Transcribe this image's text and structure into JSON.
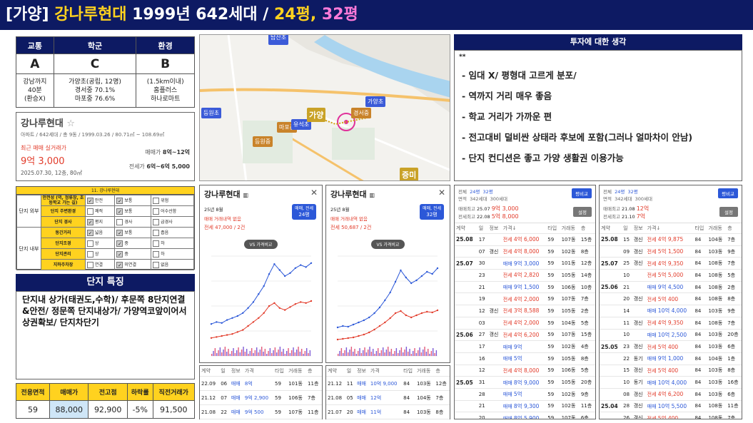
{
  "header": {
    "prefix": "[가양] ",
    "name": "강나루현대",
    "info": " 1999년 642세대 / ",
    "sizes1": "24평",
    "comma": ", ",
    "sizes2": "32평"
  },
  "scores": {
    "cols": [
      "교통",
      "학군",
      "환경"
    ],
    "grades": [
      "A",
      "C",
      "B"
    ],
    "notes": [
      [
        "강남까지",
        "40분",
        "(환승X)"
      ],
      [
        "가양초(공립, 12명)",
        "경서중 70.1%",
        "마포중 76.6%"
      ],
      [
        "(1.5km이내)",
        "홈플러스",
        "하나로마트"
      ]
    ]
  },
  "card": {
    "title": "강나루현대",
    "sub": "아파트 / 642세대 / 총 9동 / 1999.03.26 / 80.71㎡ ~ 108.69㎡",
    "recent_label": "최근 매매 실거래가",
    "recent_price": "9억 3,000",
    "recent_date": "2025.07.30, 12층, 80㎡",
    "sale_label": "매매가",
    "sale_range": "8억~12억",
    "jeonse_label": "전세가",
    "jeonse_range": "6억~6억 5,000"
  },
  "checklist": {
    "title": "11. 강나루현대",
    "out_label": "단지 외부",
    "in_label": "단지 내부",
    "rows": [
      {
        "name": "안전성 (역, 정류장, 초등학교 가는 길)",
        "opts": [
          "안전",
          "보통",
          "위험"
        ],
        "sel": [
          1,
          1,
          0
        ]
      },
      {
        "name": "단지 주변환경",
        "opts": [
          "쾌적",
          "보통",
          "어수선함"
        ],
        "sel": [
          0,
          1,
          0
        ]
      },
      {
        "name": "단지 경사",
        "opts": [
          "평지",
          "경사",
          "급경사"
        ],
        "sel": [
          1,
          0,
          0
        ]
      },
      {
        "name": "동간거리",
        "opts": [
          "넓음",
          "보통",
          "좁음"
        ],
        "sel": [
          1,
          1,
          0
        ]
      },
      {
        "name": "단지조경",
        "opts": [
          "상",
          "중",
          "하"
        ],
        "sel": [
          0,
          1,
          0
        ]
      },
      {
        "name": "단지관리",
        "opts": [
          "상",
          "중",
          "하"
        ],
        "sel": [
          0,
          1,
          0
        ]
      },
      {
        "name": "지하주차장",
        "opts": [
          "연결",
          "미연결",
          "없음"
        ],
        "sel": [
          0,
          1,
          0
        ]
      }
    ]
  },
  "feature": {
    "title": "단지 특징",
    "text": "단지내 상가(태권도,수학)/ 후문쪽 8단지연결&안전/ 정문쪽 단지내상가/ 가양역코앞이어서 상권확보/ 단지차단기"
  },
  "price_table": {
    "headers": [
      "전용면적",
      "매매가",
      "전고점",
      "하락률",
      "직전거래가"
    ],
    "values": [
      "59",
      "88,000",
      "92,900",
      "-5%",
      "91,500"
    ]
  },
  "map": {
    "pins": [
      {
        "label": "탑산초",
        "color": "#3b5bd8"
      },
      {
        "label": "등원초",
        "color": "#3b5bd8"
      },
      {
        "label": "마포중",
        "color": "#c9832a"
      },
      {
        "label": "유석초",
        "color": "#3b5bd8"
      },
      {
        "label": "가양",
        "color": "#c9a227"
      },
      {
        "label": "경서중",
        "color": "#c9832a"
      },
      {
        "label": "가양초",
        "color": "#3b5bd8"
      },
      {
        "label": "등원중",
        "color": "#c9832a"
      },
      {
        "label": "증미",
        "color": "#c9a227"
      }
    ]
  },
  "thoughts": {
    "title": "투자에 대한 생각",
    "stars": "**",
    "items": [
      "- 임대 X/ 평형대 고르게 분포/",
      "- 역까지 거리 매우 좋음",
      "- 학교 거리가 가까운 편",
      "- 전고대비 덜비싼 상태라 후보에 포함(그러나 얼마차이 안남)",
      "- 단지 컨디션은 좋고 가양 생활권 이용가능"
    ]
  },
  "chart_panels": [
    {
      "title": "강나루현대",
      "month": "25년 8월",
      "no_deal": "매매 거래내역 없음",
      "jeonse": "전세 47,000 / 2건",
      "badge1": "매매, 전세",
      "badge2": "24평",
      "compare": "VS 가격비교",
      "rows": [
        {
          "date": "22.09",
          "floor": "06",
          "type": "매매",
          "price": "8억",
          "area": "59",
          "dong": "101동",
          "fl": "11층"
        },
        {
          "date": "21.12",
          "floor": "07",
          "type": "매매",
          "price": "9억 2,900",
          "area": "59",
          "dong": "106동",
          "fl": "7층"
        },
        {
          "date": "21.08",
          "floor": "22",
          "type": "매매",
          "price": "9억 500",
          "area": "59",
          "dong": "107동",
          "fl": "11층"
        }
      ]
    },
    {
      "title": "강나루현대",
      "month": "25년 8월",
      "no_deal": "매매 거래내역 없음",
      "jeonse": "전세 50,687 / 2건",
      "badge1": "매매, 전세",
      "badge2": "32평",
      "compare": "VS 가격비교",
      "rows": [
        {
          "date": "21.12",
          "floor": "11",
          "type": "매매",
          "price": "10억 9,000",
          "area": "84",
          "dong": "103동",
          "fl": "12층"
        },
        {
          "date": "21.08",
          "floor": "05",
          "type": "매매",
          "price": "12억",
          "area": "84",
          "dong": "104동",
          "fl": "7층"
        },
        {
          "date": "21.07",
          "floor": "20",
          "type": "매매",
          "price": "11억",
          "area": "84",
          "dong": "103동",
          "fl": "8층"
        }
      ]
    }
  ],
  "chart_data": [
    {
      "type": "line",
      "series": [
        {
          "name": "매매",
          "values": [
            3.2,
            3.4,
            3.3,
            3.6,
            3.8,
            4.0,
            4.3,
            4.8,
            5.4,
            6.2,
            7.0,
            8.2,
            9.2,
            8.6,
            8.0,
            8.3,
            8.8,
            9.1,
            8.9,
            9.3
          ]
        },
        {
          "name": "전세",
          "values": [
            1.8,
            1.9,
            2.0,
            2.1,
            2.2,
            2.4,
            2.6,
            3.0,
            3.4,
            3.8,
            4.3,
            5.0,
            5.3,
            4.8,
            4.6,
            4.9,
            5.2,
            5.4,
            5.3,
            5.5
          ]
        }
      ],
      "ylim": [
        0,
        10
      ]
    },
    {
      "type": "line",
      "series": [
        {
          "name": "매매",
          "values": [
            4.0,
            4.2,
            4.1,
            4.4,
            4.7,
            5.0,
            5.4,
            6.0,
            6.8,
            7.8,
            8.9,
            10.4,
            12.0,
            11.0,
            10.2,
            10.6,
            11.2,
            11.8,
            11.5,
            12.3
          ]
        },
        {
          "name": "전세",
          "values": [
            2.3,
            2.4,
            2.5,
            2.6,
            2.8,
            3.0,
            3.3,
            3.7,
            4.2,
            4.7,
            5.3,
            6.0,
            6.3,
            5.7,
            5.4,
            5.7,
            6.0,
            6.2,
            6.1,
            6.4
          ]
        }
      ],
      "ylim": [
        0,
        14
      ]
    }
  ],
  "lists": [
    {
      "tabs": [
        "전체",
        "24평",
        "32평"
      ],
      "sub": [
        "면적",
        "342세대",
        "300세대"
      ],
      "compare_btn": "평비교",
      "sale_label": "매매최고",
      "sale_date": "25.07",
      "sale_val": "9억 3,000",
      "jeonse_label": "전세최고",
      "jeonse_date": "22.08",
      "jeonse_val": "5억 8,000",
      "set_btn": "설정",
      "cols": [
        "계약",
        "일",
        "정보",
        "가격↓",
        "타입",
        "거래동",
        "층"
      ],
      "rows": [
        {
          "m": "25.08",
          "d": "17",
          "tag": "",
          "kind": "전세",
          "price": "4억 6,000",
          "area": "59",
          "dong": "107동",
          "fl": "15층"
        },
        {
          "m": "",
          "d": "07",
          "tag": "갱신",
          "kind": "전세",
          "price": "4억 8,000",
          "area": "59",
          "dong": "102동",
          "fl": "8층"
        },
        {
          "m": "25.07",
          "d": "30",
          "tag": "",
          "kind": "매매",
          "price": "9억 3,000",
          "area": "59",
          "dong": "101동",
          "fl": "12층"
        },
        {
          "m": "",
          "d": "23",
          "tag": "",
          "kind": "전세",
          "price": "4억 2,820",
          "area": "59",
          "dong": "105동",
          "fl": "14층"
        },
        {
          "m": "",
          "d": "21",
          "tag": "",
          "kind": "매매",
          "price": "9억 1,500",
          "area": "59",
          "dong": "106동",
          "fl": "10층"
        },
        {
          "m": "",
          "d": "19",
          "tag": "",
          "kind": "전세",
          "price": "4억 2,000",
          "area": "59",
          "dong": "107동",
          "fl": "7층"
        },
        {
          "m": "",
          "d": "12",
          "tag": "갱신",
          "kind": "전세",
          "price": "3억 8,588",
          "area": "59",
          "dong": "105동",
          "fl": "2층"
        },
        {
          "m": "",
          "d": "03",
          "tag": "",
          "kind": "전세",
          "price": "4억 2,000",
          "area": "59",
          "dong": "104동",
          "fl": "5층"
        },
        {
          "m": "25.06",
          "d": "27",
          "tag": "갱신",
          "kind": "전세",
          "price": "4억 6,200",
          "area": "59",
          "dong": "107동",
          "fl": "15층"
        },
        {
          "m": "",
          "d": "17",
          "tag": "",
          "kind": "매매",
          "price": "9억",
          "area": "59",
          "dong": "102동",
          "fl": "4층"
        },
        {
          "m": "",
          "d": "16",
          "tag": "",
          "kind": "매매",
          "price": "5억",
          "area": "59",
          "dong": "105동",
          "fl": "8층"
        },
        {
          "m": "",
          "d": "12",
          "tag": "",
          "kind": "전세",
          "price": "4억 8,000",
          "area": "59",
          "dong": "106동",
          "fl": "5층"
        },
        {
          "m": "25.05",
          "d": "31",
          "tag": "",
          "kind": "매매",
          "price": "8억 9,000",
          "area": "59",
          "dong": "105동",
          "fl": "20층"
        },
        {
          "m": "",
          "d": "28",
          "tag": "",
          "kind": "매매",
          "price": "5억",
          "area": "59",
          "dong": "102동",
          "fl": "9층"
        },
        {
          "m": "",
          "d": "21",
          "tag": "",
          "kind": "매매",
          "price": "8억 9,300",
          "area": "59",
          "dong": "102동",
          "fl": "11층"
        },
        {
          "m": "",
          "d": "20",
          "tag": "",
          "kind": "매매",
          "price": "8억 5,900",
          "area": "59",
          "dong": "107동",
          "fl": "6층"
        }
      ]
    },
    {
      "tabs": [
        "전체",
        "24평",
        "32평"
      ],
      "sub": [
        "면적",
        "342세대",
        "300세대"
      ],
      "compare_btn": "평비교",
      "sale_label": "매매최고",
      "sale_date": "21.08",
      "sale_val": "12억",
      "jeonse_label": "전세최고",
      "jeonse_date": "21.10",
      "jeonse_val": "7억",
      "set_btn": "설정",
      "cols": [
        "계약",
        "일",
        "정보",
        "가격↓",
        "타입",
        "거래동",
        "층"
      ],
      "rows": [
        {
          "m": "25.08",
          "d": "15",
          "tag": "갱신",
          "kind": "전세",
          "price": "4억 9,875",
          "area": "84",
          "dong": "104동",
          "fl": "7층"
        },
        {
          "m": "",
          "d": "09",
          "tag": "갱신",
          "kind": "전세",
          "price": "5억 1,500",
          "area": "84",
          "dong": "103동",
          "fl": "9층"
        },
        {
          "m": "25.07",
          "d": "25",
          "tag": "갱신",
          "kind": "전세",
          "price": "4억 9,350",
          "area": "84",
          "dong": "108동",
          "fl": "7층"
        },
        {
          "m": "",
          "d": "10",
          "tag": "",
          "kind": "전세",
          "price": "5억 5,000",
          "area": "84",
          "dong": "108동",
          "fl": "5층"
        },
        {
          "m": "25.06",
          "d": "21",
          "tag": "",
          "kind": "매매",
          "price": "9억 4,500",
          "area": "84",
          "dong": "108동",
          "fl": "2층"
        },
        {
          "m": "",
          "d": "20",
          "tag": "갱신",
          "kind": "전세",
          "price": "5억 400",
          "area": "84",
          "dong": "108동",
          "fl": "8층"
        },
        {
          "m": "",
          "d": "14",
          "tag": "",
          "kind": "매매",
          "price": "10억 4,000",
          "area": "84",
          "dong": "103동",
          "fl": "9층"
        },
        {
          "m": "",
          "d": "11",
          "tag": "갱신",
          "kind": "전세",
          "price": "4억 9,350",
          "area": "84",
          "dong": "108동",
          "fl": "7층"
        },
        {
          "m": "",
          "d": "10",
          "tag": "",
          "kind": "매매",
          "price": "10억 2,500",
          "area": "84",
          "dong": "103동",
          "fl": "20층"
        },
        {
          "m": "25.05",
          "d": "23",
          "tag": "갱신",
          "kind": "전세",
          "price": "5억 400",
          "area": "84",
          "dong": "103동",
          "fl": "6층"
        },
        {
          "m": "",
          "d": "22",
          "tag": "동기",
          "kind": "매매",
          "price": "9억 1,000",
          "area": "84",
          "dong": "104동",
          "fl": "1층"
        },
        {
          "m": "",
          "d": "15",
          "tag": "갱신",
          "kind": "전세",
          "price": "5억 400",
          "area": "84",
          "dong": "103동",
          "fl": "8층"
        },
        {
          "m": "",
          "d": "10",
          "tag": "동기",
          "kind": "매매",
          "price": "10억 4,000",
          "area": "84",
          "dong": "103동",
          "fl": "16층"
        },
        {
          "m": "",
          "d": "08",
          "tag": "갱신",
          "kind": "전세",
          "price": "4억 6,200",
          "area": "84",
          "dong": "103동",
          "fl": "6층"
        },
        {
          "m": "25.04",
          "d": "28",
          "tag": "갱신",
          "kind": "매매",
          "price": "10억 5,500",
          "area": "84",
          "dong": "108동",
          "fl": "11층"
        },
        {
          "m": "",
          "d": "26",
          "tag": "갱신",
          "kind": "전세",
          "price": "5억 400",
          "area": "84",
          "dong": "108동",
          "fl": "7층"
        }
      ]
    }
  ],
  "colors": {
    "navy": "#0d1a63",
    "yellow": "#ffd21f",
    "pink": "#ff7ad9",
    "sale": "#2c58d8",
    "jeonse": "#e23b2a"
  }
}
